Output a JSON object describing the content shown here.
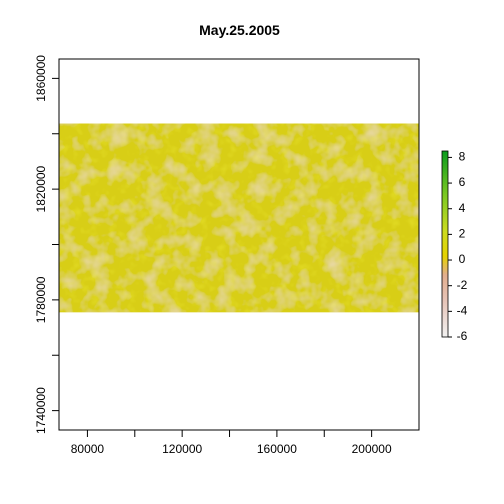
{
  "chart_data": {
    "type": "heatmap",
    "title": "May.25.2005",
    "xlabel": "",
    "ylabel": "",
    "xlim": [
      68000,
      220000
    ],
    "ylim": [
      1733000,
      1867000
    ],
    "x_ticks": [
      80000,
      100000,
      120000,
      140000,
      160000,
      180000,
      200000
    ],
    "x_tick_labels": [
      "80000",
      "",
      "120000",
      "",
      "160000",
      "",
      "200000"
    ],
    "y_ticks": [
      1740000,
      1760000,
      1780000,
      1800000,
      1820000,
      1840000,
      1860000
    ],
    "y_tick_labels": [
      "1740000",
      "",
      "1780000",
      "",
      "1820000",
      "",
      "1860000"
    ],
    "raster_extent": {
      "xmin": 68000,
      "xmax": 220000,
      "ymin": 1775500,
      "ymax": 1843700
    },
    "legend": {
      "placement": "right",
      "min": -6,
      "max": 8.5,
      "ticks": [
        8,
        6,
        4,
        2,
        0,
        -2,
        -4,
        -6
      ],
      "tick_labels": [
        "8",
        "6",
        "4",
        "2",
        "0",
        "-2",
        "-4",
        "-6"
      ],
      "colors": [
        {
          "value": -6.5,
          "color": "#F2F2F2"
        },
        {
          "value": -3.5,
          "color": "#E6C3B6"
        },
        {
          "value": -1.5,
          "color": "#E2AE8E"
        },
        {
          "value": 0,
          "color": "#E6D200"
        },
        {
          "value": 2,
          "color": "#CDDC20"
        },
        {
          "value": 5,
          "color": "#7AC823"
        },
        {
          "value": 8.5,
          "color": "#0A9B1E"
        }
      ]
    },
    "raster_colors": {
      "base": "#D8CE18",
      "high": "#E3E010",
      "low": "#D9B78A"
    }
  }
}
